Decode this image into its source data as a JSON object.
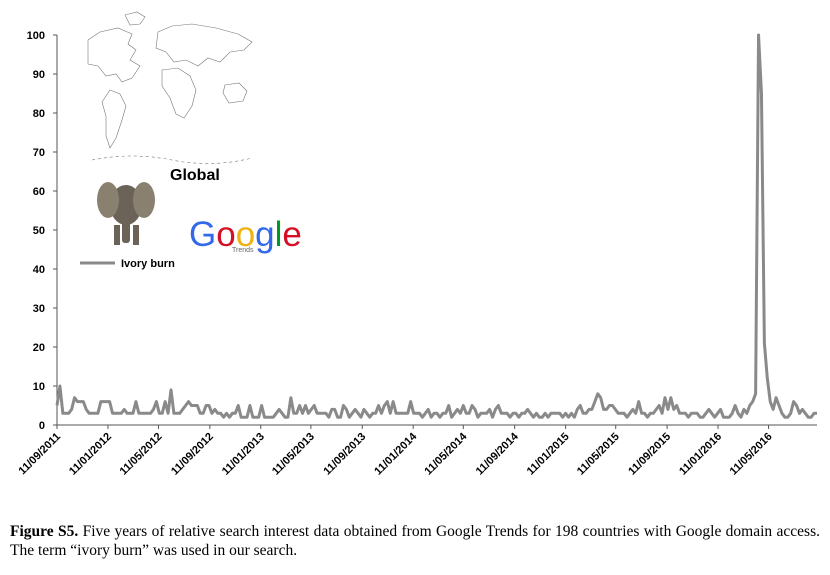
{
  "chart_data": {
    "type": "line",
    "title": "Global",
    "logo": {
      "name": "Google",
      "sub": "Trends"
    },
    "x": [
      "2011-09-11",
      "2011-09-18",
      "2011-09-25",
      "2011-10-02",
      "2011-10-09",
      "2011-10-16",
      "2011-10-23",
      "2011-10-30",
      "2011-11-06",
      "2011-11-13",
      "2011-11-20",
      "2011-11-27",
      "2011-12-04",
      "2011-12-11",
      "2011-12-18",
      "2011-12-25",
      "2012-01-01",
      "2012-01-08",
      "2012-01-15",
      "2012-01-22",
      "2012-01-29",
      "2012-02-05",
      "2012-02-12",
      "2012-02-19",
      "2012-02-26",
      "2012-03-04",
      "2012-03-11",
      "2012-03-18",
      "2012-03-25",
      "2012-04-01",
      "2012-04-08",
      "2012-04-15",
      "2012-04-22",
      "2012-04-29",
      "2012-05-06",
      "2012-05-13",
      "2012-05-20",
      "2012-05-27",
      "2012-06-03",
      "2012-06-10",
      "2012-06-17",
      "2012-06-24",
      "2012-07-01",
      "2012-07-08",
      "2012-07-15",
      "2012-07-22",
      "2012-07-29",
      "2012-08-05",
      "2012-08-12",
      "2012-08-19",
      "2012-08-26",
      "2012-09-02",
      "2012-09-09",
      "2012-09-16",
      "2012-09-23",
      "2012-09-30",
      "2012-10-07",
      "2012-10-14",
      "2012-10-21",
      "2012-10-28",
      "2012-11-04",
      "2012-11-11",
      "2012-11-18",
      "2012-11-25",
      "2012-12-02",
      "2012-12-09",
      "2012-12-16",
      "2012-12-23",
      "2012-12-30",
      "2013-01-06",
      "2013-01-13",
      "2013-01-20",
      "2013-01-27",
      "2013-02-03",
      "2013-02-10",
      "2013-02-17",
      "2013-02-24",
      "2013-03-03",
      "2013-03-10",
      "2013-03-17",
      "2013-03-24",
      "2013-03-31",
      "2013-04-07",
      "2013-04-14",
      "2013-04-21",
      "2013-04-28",
      "2013-05-05",
      "2013-05-12",
      "2013-05-19",
      "2013-05-26",
      "2013-06-02",
      "2013-06-09",
      "2013-06-16",
      "2013-06-23",
      "2013-06-30",
      "2013-07-07",
      "2013-07-14",
      "2013-07-21",
      "2013-07-28",
      "2013-08-04",
      "2013-08-11",
      "2013-08-18",
      "2013-08-25",
      "2013-09-01",
      "2013-09-08",
      "2013-09-15",
      "2013-09-22",
      "2013-09-29",
      "2013-10-06",
      "2013-10-13",
      "2013-10-20",
      "2013-10-27",
      "2013-11-03",
      "2013-11-10",
      "2013-11-17",
      "2013-11-24",
      "2013-12-01",
      "2013-12-08",
      "2013-12-15",
      "2013-12-22",
      "2013-12-29",
      "2014-01-05",
      "2014-01-12",
      "2014-01-19",
      "2014-01-26",
      "2014-02-02",
      "2014-02-09",
      "2014-02-16",
      "2014-02-23",
      "2014-03-02",
      "2014-03-09",
      "2014-03-16",
      "2014-03-23",
      "2014-03-30",
      "2014-04-06",
      "2014-04-13",
      "2014-04-20",
      "2014-04-27",
      "2014-05-04",
      "2014-05-11",
      "2014-05-18",
      "2014-05-25",
      "2014-06-01",
      "2014-06-08",
      "2014-06-15",
      "2014-06-22",
      "2014-06-29",
      "2014-07-06",
      "2014-07-13",
      "2014-07-20",
      "2014-07-27",
      "2014-08-03",
      "2014-08-10",
      "2014-08-17",
      "2014-08-24",
      "2014-08-31",
      "2014-09-07",
      "2014-09-14",
      "2014-09-21",
      "2014-09-28",
      "2014-10-05",
      "2014-10-12",
      "2014-10-19",
      "2014-10-26",
      "2014-11-02",
      "2014-11-09",
      "2014-11-16",
      "2014-11-23",
      "2014-11-30",
      "2014-12-07",
      "2014-12-14",
      "2014-12-21",
      "2014-12-28",
      "2015-01-04",
      "2015-01-11",
      "2015-01-18",
      "2015-01-25",
      "2015-02-01",
      "2015-02-08",
      "2015-02-15",
      "2015-02-22",
      "2015-03-01",
      "2015-03-08",
      "2015-03-15",
      "2015-03-22",
      "2015-03-29",
      "2015-04-05",
      "2015-04-12",
      "2015-04-19",
      "2015-04-26",
      "2015-05-03",
      "2015-05-10",
      "2015-05-17",
      "2015-05-24",
      "2015-05-31",
      "2015-06-07",
      "2015-06-14",
      "2015-06-21",
      "2015-06-28",
      "2015-07-05",
      "2015-07-12",
      "2015-07-19",
      "2015-07-26",
      "2015-08-02",
      "2015-08-09",
      "2015-08-16",
      "2015-08-23",
      "2015-08-30",
      "2015-09-06",
      "2015-09-13",
      "2015-09-20",
      "2015-09-27",
      "2015-10-04",
      "2015-10-11",
      "2015-10-18",
      "2015-10-25",
      "2015-11-01",
      "2015-11-08",
      "2015-11-15",
      "2015-11-22",
      "2015-11-29",
      "2015-12-06",
      "2015-12-13",
      "2015-12-20",
      "2015-12-27",
      "2016-01-03",
      "2016-01-10",
      "2016-01-17",
      "2016-01-24",
      "2016-01-31",
      "2016-02-07",
      "2016-02-14",
      "2016-02-21",
      "2016-02-28",
      "2016-03-06",
      "2016-03-13",
      "2016-03-20",
      "2016-03-27",
      "2016-04-03",
      "2016-04-10",
      "2016-04-17",
      "2016-04-24",
      "2016-05-01",
      "2016-05-08",
      "2016-05-15",
      "2016-05-22",
      "2016-05-29",
      "2016-06-05",
      "2016-06-12",
      "2016-06-19",
      "2016-06-26",
      "2016-07-03",
      "2016-07-10",
      "2016-07-17",
      "2016-07-24",
      "2016-07-31",
      "2016-08-07",
      "2016-08-14",
      "2016-08-21",
      "2016-08-28",
      "2016-09-04"
    ],
    "series": [
      {
        "name": "Ivory burn",
        "color": "#8a8a8a",
        "values": [
          5,
          10,
          3,
          3,
          3,
          4,
          7,
          6,
          6,
          6,
          4,
          3,
          3,
          3,
          3,
          6,
          6,
          6,
          6,
          3,
          3,
          3,
          3,
          4,
          3,
          3,
          3,
          6,
          3,
          3,
          3,
          3,
          3,
          4,
          6,
          3,
          3,
          6,
          3,
          9,
          3,
          3,
          3,
          4,
          5,
          6,
          5,
          5,
          5,
          3,
          3,
          5,
          5,
          3,
          4,
          3,
          3,
          2,
          3,
          2,
          3,
          3,
          5,
          2,
          2,
          2,
          5,
          2,
          2,
          2,
          5,
          2,
          2,
          2,
          2,
          3,
          4,
          3,
          2,
          2,
          7,
          3,
          3,
          5,
          3,
          5,
          3,
          4,
          5,
          3,
          3,
          3,
          3,
          2,
          4,
          4,
          2,
          2,
          5,
          4,
          2,
          3,
          4,
          3,
          2,
          4,
          3,
          2,
          3,
          3,
          5,
          3,
          5,
          6,
          3,
          6,
          3,
          3,
          3,
          3,
          3,
          6,
          3,
          3,
          3,
          2,
          3,
          4,
          2,
          3,
          3,
          2,
          3,
          3,
          5,
          2,
          3,
          4,
          3,
          5,
          3,
          3,
          5,
          4,
          2,
          3,
          3,
          3,
          4,
          2,
          4,
          5,
          3,
          3,
          3,
          2,
          3,
          3,
          2,
          3,
          3,
          4,
          3,
          2,
          3,
          2,
          2,
          3,
          2,
          3,
          3,
          3,
          3,
          2,
          3,
          2,
          3,
          2,
          4,
          5,
          3,
          3,
          4,
          4,
          6,
          8,
          7,
          4,
          4,
          5,
          5,
          4,
          3,
          3,
          3,
          2,
          3,
          4,
          3,
          6,
          3,
          3,
          2,
          3,
          3,
          4,
          5,
          3,
          7,
          4,
          7,
          4,
          5,
          3,
          3,
          3,
          2,
          3,
          3,
          3,
          2,
          2,
          3,
          4,
          3,
          2,
          3,
          4,
          2,
          2,
          2,
          3,
          5,
          3,
          2,
          4,
          3,
          5,
          6,
          8,
          100,
          85,
          21,
          12,
          6,
          4,
          7,
          5,
          3,
          2,
          2,
          3,
          6,
          5,
          3,
          4,
          3,
          2,
          2,
          3,
          3
        ]
      }
    ],
    "xlim": [
      "2011-09-11",
      "2016-09-04"
    ],
    "xticks": [
      {
        "value": "2011-09-11",
        "label": "11/09/2011"
      },
      {
        "value": "2012-01-11",
        "label": "11/01/2012"
      },
      {
        "value": "2012-05-11",
        "label": "11/05/2012"
      },
      {
        "value": "2012-09-11",
        "label": "11/09/2012"
      },
      {
        "value": "2013-01-11",
        "label": "11/01/2013"
      },
      {
        "value": "2013-05-11",
        "label": "11/05/2013"
      },
      {
        "value": "2013-09-11",
        "label": "11/09/2013"
      },
      {
        "value": "2014-01-11",
        "label": "11/01/2014"
      },
      {
        "value": "2014-05-11",
        "label": "11/05/2014"
      },
      {
        "value": "2014-09-11",
        "label": "11/09/2014"
      },
      {
        "value": "2015-01-11",
        "label": "11/01/2015"
      },
      {
        "value": "2015-05-11",
        "label": "11/05/2015"
      },
      {
        "value": "2015-09-11",
        "label": "11/09/2015"
      },
      {
        "value": "2016-01-11",
        "label": "11/01/2016"
      },
      {
        "value": "2016-05-11",
        "label": "11/05/2016"
      }
    ],
    "ylim": [
      0,
      100
    ],
    "yticks": [
      0,
      10,
      20,
      30,
      40,
      50,
      60,
      70,
      80,
      90,
      100
    ]
  },
  "caption": {
    "label": "Figure S5.",
    "text": "Five years of relative search interest data obtained from Google Trends for 198 countries with Google domain access.  The term “ivory burn” was used in our search."
  }
}
